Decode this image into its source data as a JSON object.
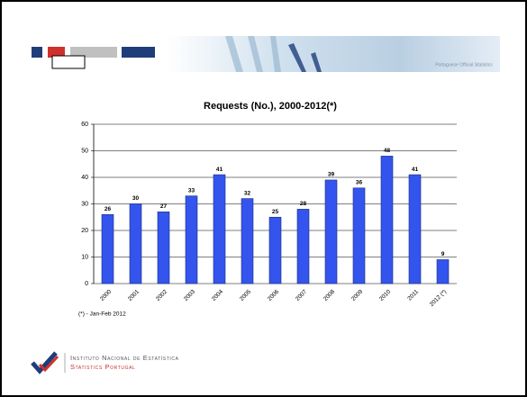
{
  "chart_data": {
    "type": "bar",
    "title": "Requests (No.), 2000-2012(*)",
    "categories": [
      "2000",
      "2001",
      "2002",
      "2003",
      "2004",
      "2005",
      "2006",
      "2007",
      "2008",
      "2009",
      "2010",
      "2011",
      "2012 (*)"
    ],
    "values": [
      26,
      30,
      27,
      33,
      41,
      32,
      25,
      28,
      39,
      36,
      48,
      41,
      9
    ],
    "color": "#3355ee",
    "ylim": [
      0,
      60
    ],
    "yticks": [
      0,
      10,
      20,
      30,
      40,
      50,
      60
    ],
    "grid": true,
    "note": "(*) - Jan-Feb 2012"
  },
  "banner": {
    "text": "Portuguese Official Statistics"
  },
  "footer": {
    "name": "Instituto Nacional de Estatística",
    "subtitle": "Statistics Portugal"
  }
}
